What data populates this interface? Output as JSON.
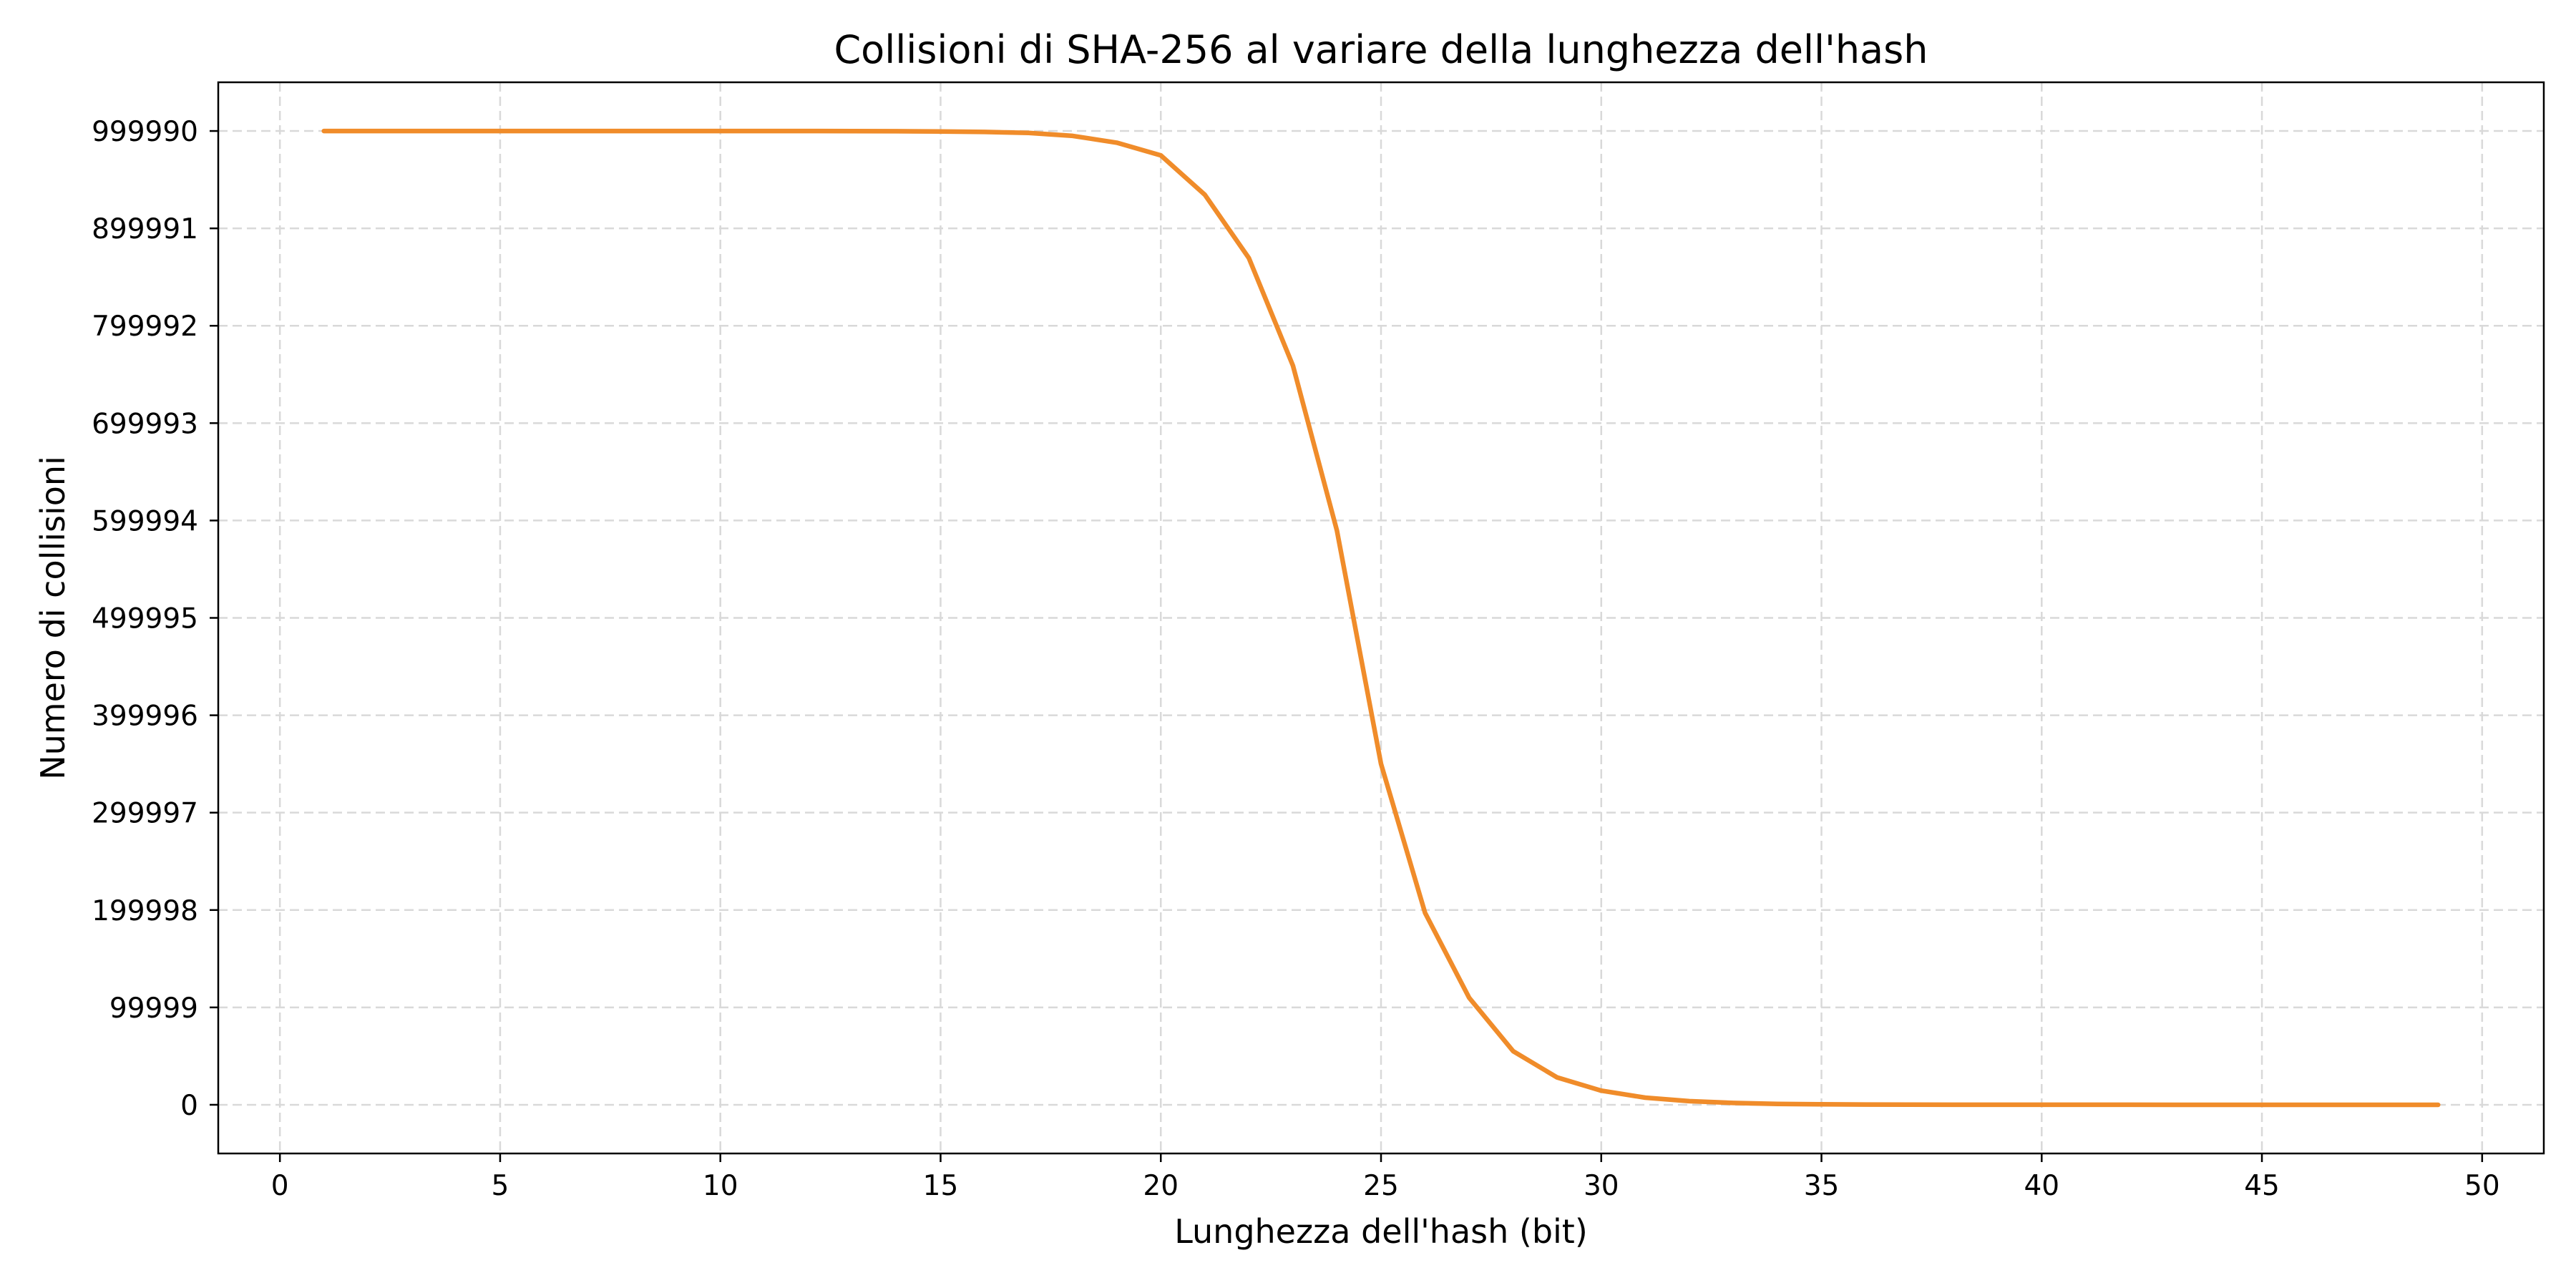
{
  "chart_data": {
    "type": "line",
    "title": "Collisioni di SHA-256 al variare della lunghezza dell'hash",
    "xlabel": "Lunghezza dell'hash (bit)",
    "ylabel": "Numero di collisioni",
    "xlim": [
      -1.4,
      51.4
    ],
    "ylim": [
      -50000,
      1050000
    ],
    "xticks": [
      0,
      5,
      10,
      15,
      20,
      25,
      30,
      35,
      40,
      45,
      50
    ],
    "xtick_labels": [
      "0",
      "5",
      "10",
      "15",
      "20",
      "25",
      "30",
      "35",
      "40",
      "45",
      "50"
    ],
    "yticks": [
      0,
      99999,
      199998,
      299997,
      399996,
      499995,
      599994,
      699993,
      799992,
      899991,
      999990
    ],
    "ytick_labels": [
      "0",
      "99999",
      "199998",
      "299997",
      "399996",
      "499995",
      "599994",
      "699993",
      "799992",
      "899991",
      "999990"
    ],
    "grid": true,
    "legend": "none",
    "colors": {
      "line": "#f08c2a",
      "grid": "#d9d9d9",
      "frame": "#000000"
    },
    "series": [
      {
        "x": [
          1,
          2,
          3,
          4,
          5,
          6,
          7,
          8,
          9,
          10,
          11,
          12,
          13,
          14,
          15,
          16,
          17,
          18,
          19,
          20,
          21,
          22,
          23,
          24,
          25,
          26,
          27,
          28,
          29,
          30,
          31,
          32,
          33,
          34,
          35,
          36,
          37,
          38,
          39,
          40,
          41,
          42,
          43,
          44,
          45,
          46,
          47,
          48,
          49
        ],
        "values": [
          999990,
          999990,
          999990,
          999990,
          999990,
          999990,
          999989,
          999988,
          999985,
          999980,
          999968,
          999940,
          999880,
          999760,
          999500,
          999000,
          998000,
          995000,
          988000,
          975000,
          934500,
          869500,
          759000,
          589600,
          350000,
          197000,
          110000,
          55000,
          28000,
          14500,
          7300,
          3700,
          1850,
          930,
          465,
          235,
          118,
          59,
          30,
          15,
          8,
          4,
          2,
          1,
          0,
          0,
          0,
          0,
          0
        ]
      }
    ]
  }
}
